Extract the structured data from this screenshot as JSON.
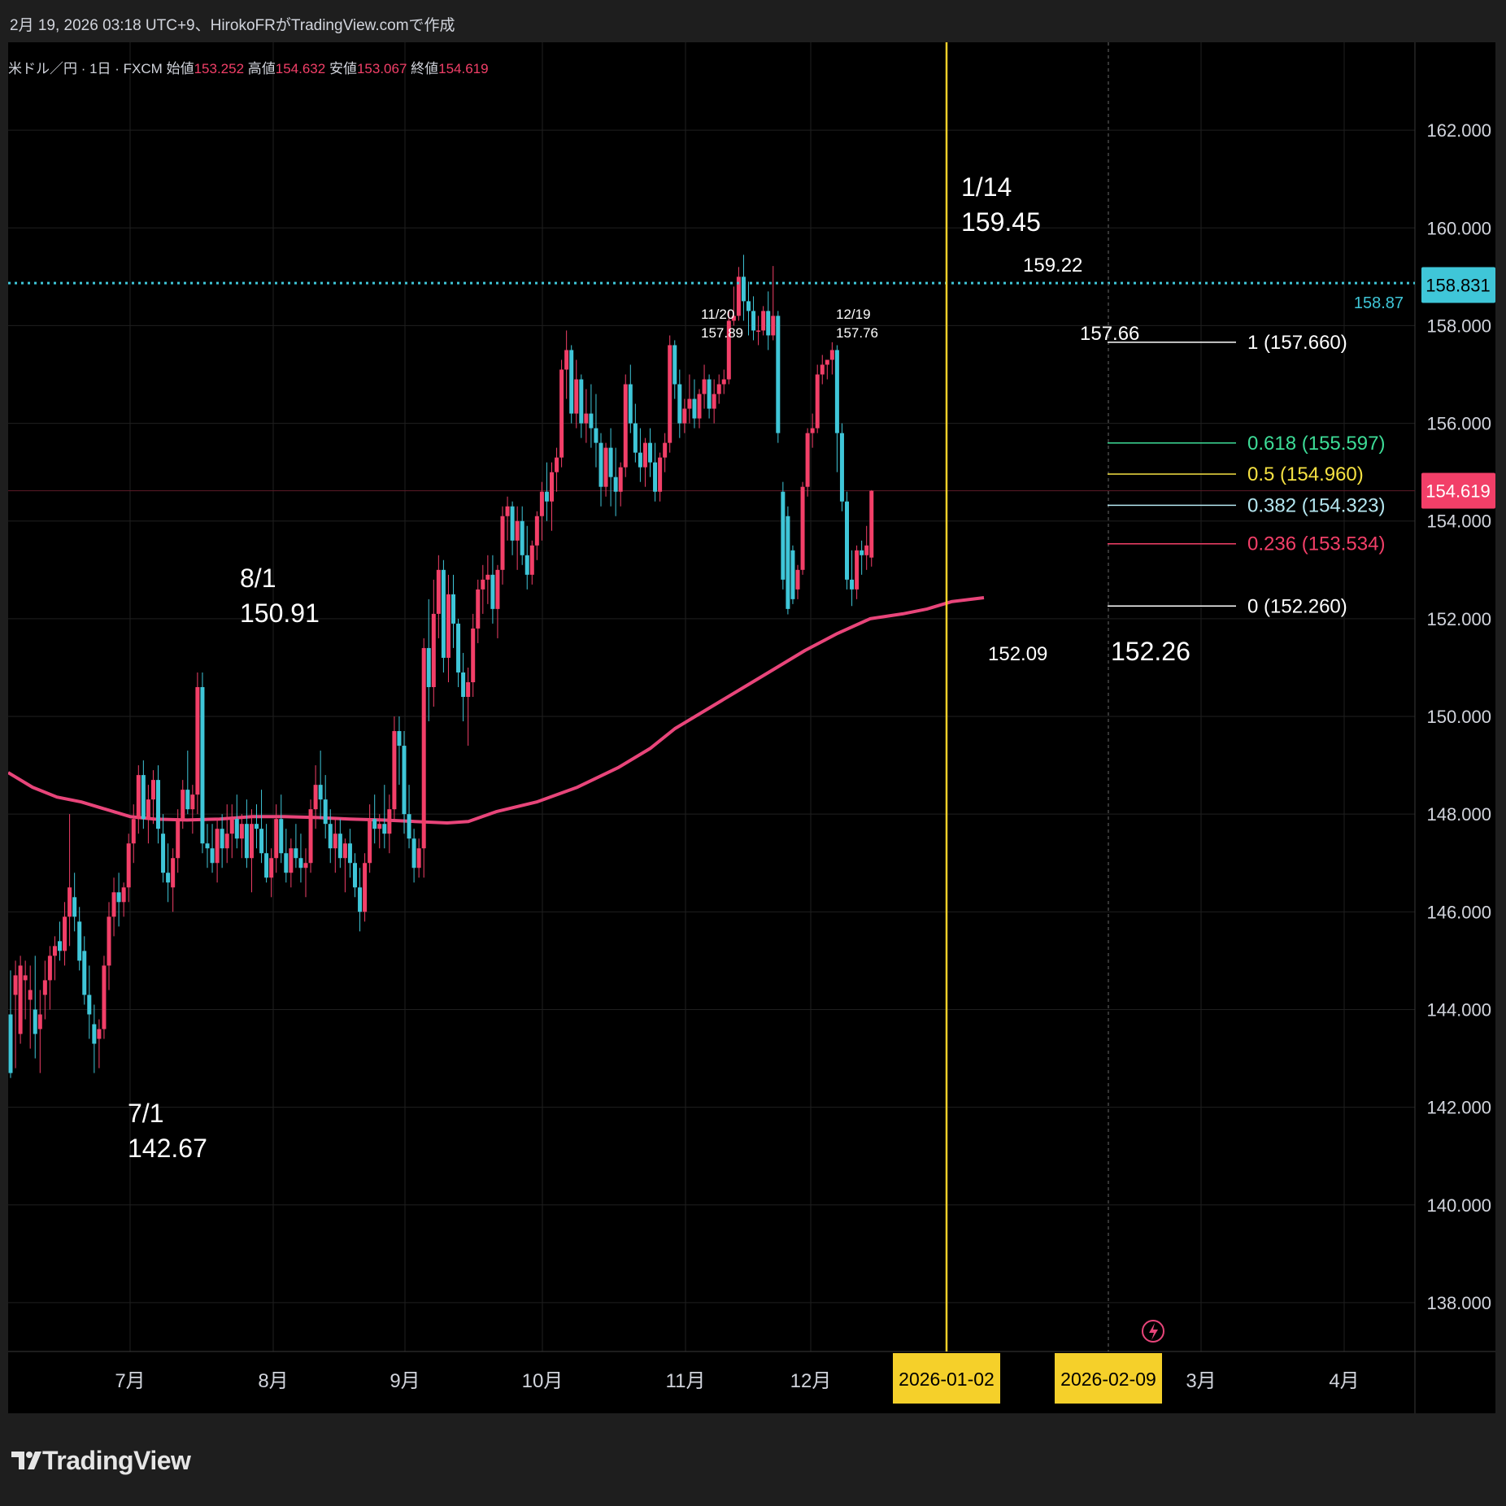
{
  "header": {
    "credit": "2月 19, 2026 03:18 UTC+9、HirokoFRがTradingView.comで作成"
  },
  "legend": {
    "symbol": "米ドル／円 · 1日 · FXCM",
    "open_label": "始値",
    "open": "153.252",
    "high_label": "高値",
    "high": "154.632",
    "low_label": "安値",
    "low": "153.067",
    "close_label": "終値",
    "close": "154.619"
  },
  "logo": {
    "text": "TradingView"
  },
  "colors": {
    "up": "#f23f68",
    "down": "#3fc6d8",
    "ma": "#e8457a",
    "vline": "#f5d02a",
    "hline": "#3fc6d8",
    "fib_1": "#ffffff",
    "fib_0618": "#3ddc97",
    "fib_05": "#f5e142",
    "fib_0382": "#b4e6f0",
    "fib_0236": "#f23f68",
    "fib_0": "#ffffff"
  },
  "chart_data": {
    "type": "candlestick",
    "ylim": [
      137.0,
      163.8
    ],
    "y_ticks": [
      "138.000",
      "140.000",
      "142.000",
      "144.000",
      "146.000",
      "148.000",
      "150.000",
      "152.000",
      "154.000",
      "156.000",
      "158.000",
      "160.000",
      "162.000"
    ],
    "x_ticks": [
      "7月",
      "8月",
      "9月",
      "10月",
      "11月",
      "12月",
      "3月",
      "4月"
    ],
    "x_date_labels": [
      "2026-01-02",
      "2026-02-09"
    ],
    "price_badges": [
      {
        "label": "158.831",
        "value": 158.831,
        "color": "#3fc6d8"
      },
      {
        "label": "154.619",
        "value": 154.619,
        "color": "#f23f68"
      }
    ],
    "horizontal_line": {
      "value": 158.87,
      "label": "158.87"
    },
    "annotations": [
      {
        "text": "1/14",
        "text2": "159.45"
      },
      {
        "text": "8/1",
        "text2": "150.91"
      },
      {
        "text": "7/1",
        "text2": "142.67"
      },
      {
        "text": "11/20",
        "text2": "157.89"
      },
      {
        "text": "12/19",
        "text2": "157.76"
      },
      {
        "text": "159.22"
      },
      {
        "text": "157.66"
      },
      {
        "text": "152.09"
      },
      {
        "text": "152.26"
      }
    ],
    "fibonacci": [
      {
        "label": "1 (157.660)",
        "value": 157.66
      },
      {
        "label": "0.618 (155.597)",
        "value": 155.597
      },
      {
        "label": "0.5 (154.960)",
        "value": 154.96
      },
      {
        "label": "0.382 (154.323)",
        "value": 154.323
      },
      {
        "label": "0.236 (153.534)",
        "value": 153.534
      },
      {
        "label": "0 (152.260)",
        "value": 152.26
      }
    ],
    "ma_series": [
      [
        0,
        148.85
      ],
      [
        30,
        148.55
      ],
      [
        60,
        148.35
      ],
      [
        90,
        148.25
      ],
      [
        120,
        148.1
      ],
      [
        150,
        147.95
      ],
      [
        180,
        147.9
      ],
      [
        220,
        147.88
      ],
      [
        260,
        147.9
      ],
      [
        300,
        147.95
      ],
      [
        340,
        147.95
      ],
      [
        380,
        147.93
      ],
      [
        420,
        147.9
      ],
      [
        460,
        147.88
      ],
      [
        500,
        147.85
      ],
      [
        540,
        147.82
      ],
      [
        566,
        147.85
      ],
      [
        600,
        148.05
      ],
      [
        650,
        148.25
      ],
      [
        700,
        148.55
      ],
      [
        750,
        148.95
      ],
      [
        790,
        149.35
      ],
      [
        820,
        149.75
      ],
      [
        860,
        150.15
      ],
      [
        900,
        150.55
      ],
      [
        940,
        150.95
      ],
      [
        980,
        151.35
      ],
      [
        1020,
        151.7
      ],
      [
        1060,
        152.0
      ],
      [
        1100,
        152.1
      ],
      [
        1130,
        152.2
      ],
      [
        1160,
        152.35
      ],
      [
        1200,
        152.43
      ]
    ],
    "candles": [
      [
        143.9,
        144.8,
        142.6,
        142.7
      ],
      [
        144.3,
        145.0,
        142.8,
        144.7
      ],
      [
        143.5,
        145.1,
        143.3,
        144.9
      ],
      [
        144.6,
        145.0,
        143.8,
        144.7
      ],
      [
        144.2,
        144.9,
        143.2,
        144.4
      ],
      [
        144.0,
        145.1,
        143.0,
        143.5
      ],
      [
        143.6,
        144.4,
        142.7,
        143.9
      ],
      [
        144.3,
        145.0,
        143.8,
        144.6
      ],
      [
        144.6,
        145.3,
        144.0,
        145.1
      ],
      [
        145.1,
        145.5,
        144.6,
        145.3
      ],
      [
        145.4,
        145.8,
        145.0,
        145.2
      ],
      [
        145.2,
        146.2,
        144.9,
        145.9
      ],
      [
        145.9,
        148.0,
        145.3,
        146.5
      ],
      [
        146.3,
        146.8,
        145.6,
        145.9
      ],
      [
        145.8,
        146.1,
        144.8,
        145.0
      ],
      [
        145.2,
        145.5,
        144.1,
        144.3
      ],
      [
        144.3,
        144.9,
        143.4,
        143.9
      ],
      [
        143.7,
        144.1,
        142.7,
        143.3
      ],
      [
        143.4,
        143.8,
        142.8,
        143.6
      ],
      [
        143.6,
        145.1,
        143.4,
        144.9
      ],
      [
        144.9,
        146.2,
        144.4,
        145.9
      ],
      [
        145.9,
        146.7,
        145.5,
        146.4
      ],
      [
        146.4,
        146.8,
        145.7,
        146.2
      ],
      [
        146.2,
        146.6,
        145.9,
        146.5
      ],
      [
        146.5,
        147.6,
        146.2,
        147.4
      ],
      [
        147.4,
        148.2,
        147.0,
        147.9
      ],
      [
        147.9,
        149.0,
        147.6,
        148.8
      ],
      [
        148.8,
        149.1,
        147.7,
        147.9
      ],
      [
        147.9,
        148.6,
        147.4,
        148.3
      ],
      [
        148.3,
        148.9,
        147.8,
        148.7
      ],
      [
        148.7,
        149.0,
        147.4,
        147.7
      ],
      [
        147.6,
        148.0,
        146.6,
        146.8
      ],
      [
        146.8,
        147.4,
        146.2,
        146.6
      ],
      [
        146.5,
        147.3,
        146.0,
        147.1
      ],
      [
        147.1,
        148.1,
        146.8,
        147.9
      ],
      [
        147.9,
        148.7,
        147.7,
        148.5
      ],
      [
        148.5,
        149.3,
        148.0,
        148.1
      ],
      [
        148.1,
        148.6,
        147.6,
        148.4
      ],
      [
        148.4,
        150.9,
        148.0,
        150.6
      ],
      [
        150.6,
        150.9,
        147.2,
        147.4
      ],
      [
        147.4,
        147.8,
        146.9,
        147.3
      ],
      [
        147.3,
        147.8,
        146.8,
        147.0
      ],
      [
        147.0,
        147.9,
        146.6,
        147.7
      ],
      [
        147.7,
        148.0,
        146.9,
        147.3
      ],
      [
        147.3,
        148.2,
        147.0,
        147.6
      ],
      [
        147.6,
        148.2,
        147.1,
        147.9
      ],
      [
        147.9,
        148.4,
        147.3,
        147.5
      ],
      [
        147.5,
        148.0,
        147.1,
        147.8
      ],
      [
        147.8,
        148.3,
        146.9,
        147.1
      ],
      [
        147.1,
        148.1,
        146.4,
        147.8
      ],
      [
        147.8,
        148.2,
        147.3,
        147.7
      ],
      [
        147.7,
        148.5,
        147.0,
        147.2
      ],
      [
        147.2,
        147.8,
        146.6,
        146.7
      ],
      [
        146.7,
        147.3,
        146.3,
        147.1
      ],
      [
        147.1,
        148.2,
        146.8,
        147.9
      ],
      [
        147.9,
        148.4,
        147.0,
        147.2
      ],
      [
        147.2,
        147.7,
        146.6,
        146.8
      ],
      [
        146.8,
        147.5,
        146.5,
        147.3
      ],
      [
        147.3,
        147.8,
        146.9,
        147.1
      ],
      [
        147.1,
        147.6,
        146.6,
        146.9
      ],
      [
        146.9,
        147.3,
        146.3,
        147.0
      ],
      [
        147.0,
        148.3,
        146.8,
        148.1
      ],
      [
        148.1,
        149.0,
        147.7,
        148.6
      ],
      [
        148.6,
        149.3,
        147.9,
        148.3
      ],
      [
        148.3,
        148.8,
        147.5,
        147.8
      ],
      [
        147.8,
        148.1,
        147.0,
        147.3
      ],
      [
        147.3,
        147.9,
        146.8,
        147.6
      ],
      [
        147.6,
        147.9,
        146.9,
        147.1
      ],
      [
        147.1,
        147.5,
        146.4,
        147.4
      ],
      [
        147.4,
        147.7,
        146.7,
        147.0
      ],
      [
        147.0,
        147.2,
        146.3,
        146.5
      ],
      [
        146.5,
        146.9,
        145.6,
        146.0
      ],
      [
        146.0,
        147.2,
        145.8,
        147.0
      ],
      [
        147.0,
        148.2,
        146.8,
        147.9
      ],
      [
        147.9,
        148.4,
        147.4,
        147.7
      ],
      [
        147.7,
        148.0,
        147.3,
        147.8
      ],
      [
        147.8,
        148.6,
        147.3,
        147.6
      ],
      [
        147.6,
        148.4,
        147.2,
        148.1
      ],
      [
        148.1,
        150.0,
        147.9,
        149.7
      ],
      [
        149.7,
        150.0,
        148.6,
        149.4
      ],
      [
        149.4,
        149.7,
        147.6,
        148.0
      ],
      [
        148.0,
        148.6,
        147.3,
        147.5
      ],
      [
        147.5,
        147.7,
        146.6,
        146.9
      ],
      [
        146.9,
        147.5,
        146.7,
        147.3
      ],
      [
        147.3,
        151.6,
        146.7,
        151.4
      ],
      [
        151.4,
        152.4,
        149.9,
        150.6
      ],
      [
        150.6,
        152.8,
        150.2,
        152.1
      ],
      [
        152.1,
        153.3,
        151.6,
        153.0
      ],
      [
        153.0,
        153.2,
        150.9,
        151.2
      ],
      [
        151.2,
        152.9,
        150.7,
        152.5
      ],
      [
        152.5,
        152.9,
        151.4,
        151.9
      ],
      [
        151.9,
        152.0,
        150.6,
        150.9
      ],
      [
        150.9,
        151.3,
        149.9,
        150.4
      ],
      [
        150.4,
        151.0,
        149.4,
        150.7
      ],
      [
        150.7,
        152.1,
        150.4,
        151.8
      ],
      [
        151.8,
        152.8,
        151.5,
        152.6
      ],
      [
        152.6,
        153.1,
        152.1,
        152.8
      ],
      [
        152.8,
        153.3,
        152.3,
        152.9
      ],
      [
        152.9,
        153.3,
        151.9,
        152.2
      ],
      [
        152.2,
        153.1,
        151.6,
        153.0
      ],
      [
        153.0,
        154.3,
        152.7,
        154.1
      ],
      [
        154.1,
        154.5,
        153.6,
        154.3
      ],
      [
        154.3,
        154.4,
        153.3,
        153.6
      ],
      [
        153.6,
        154.3,
        153.0,
        154.0
      ],
      [
        154.0,
        154.3,
        153.1,
        153.3
      ],
      [
        153.3,
        153.9,
        152.6,
        152.9
      ],
      [
        152.9,
        153.6,
        152.7,
        153.5
      ],
      [
        153.5,
        154.2,
        153.2,
        154.1
      ],
      [
        154.1,
        154.8,
        153.6,
        154.6
      ],
      [
        154.6,
        155.2,
        154.0,
        154.4
      ],
      [
        154.4,
        155.2,
        153.8,
        155.0
      ],
      [
        155.0,
        155.5,
        154.6,
        155.3
      ],
      [
        155.3,
        157.3,
        155.1,
        157.1
      ],
      [
        157.1,
        157.9,
        156.5,
        157.5
      ],
      [
        157.5,
        157.6,
        156.0,
        156.2
      ],
      [
        156.2,
        157.3,
        155.9,
        156.9
      ],
      [
        156.9,
        157.0,
        155.7,
        156.0
      ],
      [
        156.0,
        156.7,
        155.6,
        156.2
      ],
      [
        156.2,
        156.8,
        155.5,
        155.9
      ],
      [
        155.9,
        156.6,
        155.1,
        155.6
      ],
      [
        155.6,
        155.8,
        154.3,
        154.7
      ],
      [
        154.7,
        155.6,
        154.5,
        155.5
      ],
      [
        155.5,
        155.9,
        154.3,
        154.9
      ],
      [
        154.9,
        155.5,
        154.1,
        154.6
      ],
      [
        154.6,
        155.2,
        154.3,
        155.1
      ],
      [
        155.1,
        157.0,
        154.9,
        156.8
      ],
      [
        156.8,
        157.2,
        155.8,
        156.0
      ],
      [
        156.0,
        156.4,
        155.2,
        155.4
      ],
      [
        155.4,
        155.9,
        154.8,
        155.1
      ],
      [
        155.1,
        155.7,
        154.7,
        155.6
      ],
      [
        155.6,
        155.9,
        154.9,
        155.2
      ],
      [
        155.2,
        155.6,
        154.4,
        154.6
      ],
      [
        154.6,
        155.4,
        154.4,
        155.3
      ],
      [
        155.3,
        155.8,
        155.0,
        155.6
      ],
      [
        155.6,
        157.8,
        155.4,
        157.6
      ],
      [
        157.6,
        157.7,
        156.5,
        156.8
      ],
      [
        156.8,
        157.1,
        155.7,
        156.0
      ],
      [
        156.0,
        156.5,
        155.8,
        156.3
      ],
      [
        156.3,
        157.0,
        156.0,
        156.5
      ],
      [
        156.5,
        156.9,
        155.9,
        156.1
      ],
      [
        156.1,
        156.7,
        155.9,
        156.6
      ],
      [
        156.6,
        157.2,
        156.3,
        156.9
      ],
      [
        156.9,
        157.0,
        156.1,
        156.3
      ],
      [
        156.3,
        156.9,
        156.0,
        156.6
      ],
      [
        156.6,
        157.0,
        156.4,
        156.8
      ],
      [
        156.8,
        157.1,
        156.6,
        156.9
      ],
      [
        156.9,
        158.3,
        156.8,
        158.1
      ],
      [
        158.1,
        158.8,
        158.0,
        158.2
      ],
      [
        158.2,
        159.2,
        158.1,
        159.0
      ],
      [
        159.0,
        159.45,
        158.1,
        158.5
      ],
      [
        158.5,
        158.9,
        157.8,
        158.3
      ],
      [
        158.3,
        158.6,
        157.7,
        157.9
      ],
      [
        157.9,
        158.2,
        157.6,
        157.9
      ],
      [
        157.9,
        158.4,
        157.8,
        158.3
      ],
      [
        158.3,
        158.7,
        157.5,
        157.8
      ],
      [
        157.8,
        159.22,
        157.7,
        158.2
      ],
      [
        158.2,
        158.3,
        155.6,
        155.8
      ],
      [
        154.6,
        154.8,
        152.6,
        152.8
      ],
      [
        154.1,
        154.3,
        152.09,
        152.2
      ],
      [
        153.4,
        153.5,
        152.3,
        152.4
      ],
      [
        152.6,
        153.1,
        152.4,
        153.0
      ],
      [
        153.0,
        154.8,
        152.9,
        154.7
      ],
      [
        154.7,
        155.9,
        154.5,
        155.8
      ],
      [
        155.8,
        156.2,
        155.5,
        155.9
      ],
      [
        155.9,
        157.2,
        155.8,
        157.0
      ],
      [
        157.0,
        157.4,
        156.8,
        157.2
      ],
      [
        157.2,
        157.3,
        156.9,
        157.3
      ],
      [
        157.3,
        157.66,
        157.0,
        157.5
      ],
      [
        157.5,
        157.6,
        155.0,
        155.8
      ],
      [
        155.8,
        156.0,
        154.2,
        154.4
      ],
      [
        154.4,
        154.6,
        152.6,
        152.8
      ],
      [
        152.8,
        153.4,
        152.26,
        152.6
      ],
      [
        152.6,
        153.5,
        152.4,
        153.4
      ],
      [
        153.4,
        153.6,
        152.9,
        153.3
      ],
      [
        153.3,
        153.9,
        153.0,
        153.5
      ],
      [
        153.252,
        154.632,
        153.067,
        154.619
      ]
    ]
  }
}
